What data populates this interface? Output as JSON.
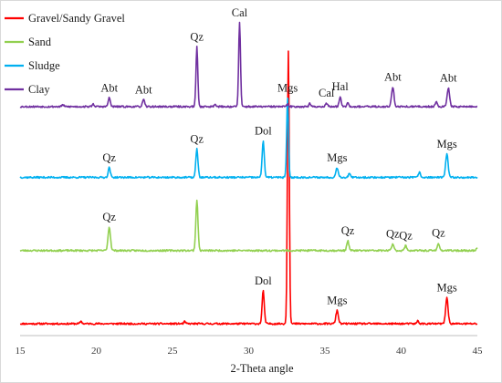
{
  "chart_data": {
    "type": "line",
    "title": "",
    "xlabel": "2-Theta angle",
    "ylabel": "",
    "xlim": [
      15,
      45
    ],
    "x_ticks": [
      15,
      20,
      25,
      30,
      35,
      40,
      45
    ],
    "grid": false,
    "legend_position": "top-left",
    "series": [
      {
        "name": "Gravel/Sandy Gravel",
        "color": "#ff0000",
        "baseline": 0.0,
        "noise_seed": 11,
        "peaks": [
          {
            "x": 19.0,
            "h": 0.05,
            "w": 0.06
          },
          {
            "x": 25.8,
            "h": 0.04,
            "w": 0.06
          },
          {
            "x": 30.95,
            "h": 0.67,
            "w": 0.07,
            "label": "Dol"
          },
          {
            "x": 32.6,
            "h": 5.6,
            "w": 0.06
          },
          {
            "x": 35.8,
            "h": 0.27,
            "w": 0.08,
            "label": "Mgs"
          },
          {
            "x": 41.1,
            "h": 0.06,
            "w": 0.06
          },
          {
            "x": 43.0,
            "h": 0.53,
            "w": 0.08,
            "label": "Mgs"
          }
        ]
      },
      {
        "name": "Sand",
        "color": "#92d050",
        "baseline": 1.5,
        "noise_seed": 23,
        "peaks": [
          {
            "x": 20.85,
            "h": 0.48,
            "w": 0.08,
            "label": "Qz"
          },
          {
            "x": 26.6,
            "h": 1.03,
            "w": 0.07
          },
          {
            "x": 36.5,
            "h": 0.2,
            "w": 0.07,
            "label": "Qz"
          },
          {
            "x": 39.45,
            "h": 0.14,
            "w": 0.07,
            "label": "Qz"
          },
          {
            "x": 40.3,
            "h": 0.1,
            "w": 0.07,
            "label": "Qz"
          },
          {
            "x": 42.45,
            "h": 0.15,
            "w": 0.07,
            "label": "Qz"
          },
          {
            "x": 45.0,
            "h": 0.06,
            "w": 0.06
          }
        ]
      },
      {
        "name": "Sludge",
        "color": "#00b0f0",
        "baseline": 3.0,
        "noise_seed": 37,
        "peaks": [
          {
            "x": 20.85,
            "h": 0.2,
            "w": 0.07,
            "label": "Qz"
          },
          {
            "x": 26.6,
            "h": 0.58,
            "w": 0.07,
            "label": "Qz"
          },
          {
            "x": 30.95,
            "h": 0.75,
            "w": 0.07,
            "label": "Dol"
          },
          {
            "x": 32.55,
            "h": 1.63,
            "w": 0.06,
            "label": "Mgs"
          },
          {
            "x": 35.8,
            "h": 0.2,
            "w": 0.08,
            "label": "Mgs"
          },
          {
            "x": 36.6,
            "h": 0.08,
            "w": 0.06
          },
          {
            "x": 41.2,
            "h": 0.1,
            "w": 0.07
          },
          {
            "x": 43.0,
            "h": 0.48,
            "w": 0.08,
            "label": "Mgs"
          }
        ]
      },
      {
        "name": "Clay",
        "color": "#7030a0",
        "baseline": 4.45,
        "noise_seed": 53,
        "peaks": [
          {
            "x": 17.8,
            "h": 0.04,
            "w": 0.06
          },
          {
            "x": 19.8,
            "h": 0.05,
            "w": 0.07
          },
          {
            "x": 20.85,
            "h": 0.18,
            "w": 0.07,
            "label": "Abt"
          },
          {
            "x": 23.1,
            "h": 0.14,
            "w": 0.07,
            "label": "Abt"
          },
          {
            "x": 26.6,
            "h": 1.22,
            "w": 0.06,
            "label": "Qz"
          },
          {
            "x": 27.8,
            "h": 0.06,
            "w": 0.06
          },
          {
            "x": 29.4,
            "h": 1.72,
            "w": 0.06,
            "label": "Cal"
          },
          {
            "x": 32.55,
            "h": 0.05,
            "w": 0.06
          },
          {
            "x": 34.0,
            "h": 0.06,
            "w": 0.06
          },
          {
            "x": 35.1,
            "h": 0.07,
            "w": 0.07,
            "label": "Cal"
          },
          {
            "x": 36.0,
            "h": 0.2,
            "w": 0.07,
            "label": "Hal"
          },
          {
            "x": 36.5,
            "h": 0.1,
            "w": 0.06
          },
          {
            "x": 39.45,
            "h": 0.4,
            "w": 0.08,
            "label": "Abt"
          },
          {
            "x": 42.3,
            "h": 0.1,
            "w": 0.07
          },
          {
            "x": 43.1,
            "h": 0.38,
            "w": 0.08,
            "label": "Abt"
          }
        ]
      }
    ]
  }
}
